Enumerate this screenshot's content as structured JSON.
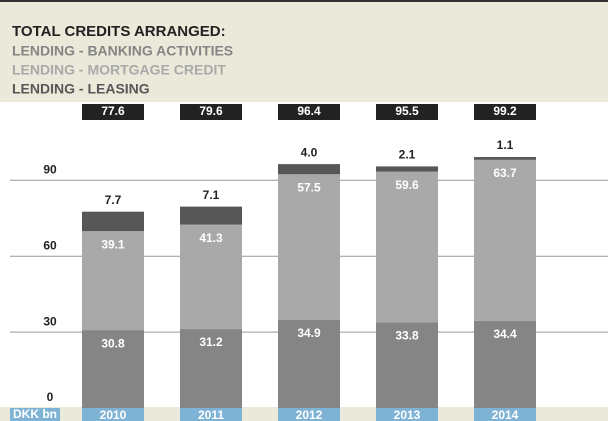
{
  "chart_data": {
    "type": "stacked_bar",
    "title": "TOTAL CREDITS ARRANGED:",
    "y_label": "DKK bn",
    "categories": [
      "2010",
      "2011",
      "2012",
      "2013",
      "2014"
    ],
    "series": [
      {
        "name": "LENDING - BANKING ACTIVITIES",
        "color": "#858585",
        "values": [
          30.8,
          31.2,
          34.9,
          33.8,
          34.4
        ]
      },
      {
        "name": "LENDING - MORTGAGE CREDIT",
        "color": "#a9a9a9",
        "values": [
          39.1,
          41.3,
          57.5,
          59.6,
          63.7
        ]
      },
      {
        "name": "LENDING - LEASING",
        "color": "#575757",
        "values": [
          7.7,
          7.1,
          4.0,
          2.1,
          1.1
        ],
        "value_labels": [
          "7.7",
          "7.1",
          "4.0",
          "2.1",
          "1.1"
        ]
      }
    ],
    "totals": [
      77.6,
      79.6,
      96.4,
      95.5,
      99.2
    ],
    "ylim": [
      0,
      117
    ],
    "yticks": [
      0,
      30,
      60,
      90
    ],
    "grid": true
  }
}
